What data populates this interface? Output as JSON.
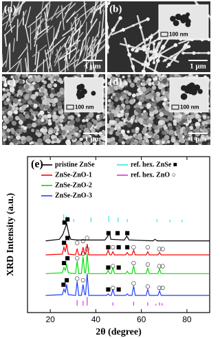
{
  "panels": [
    {
      "label": "(a)",
      "scale_bar": "1 μm"
    },
    {
      "label": "(b)",
      "scale_bar": "1 μm",
      "inset_scale_bar": "100 nm"
    },
    {
      "label": "(c)",
      "scale_bar": "1 μm",
      "inset_scale_bar": "100 nm"
    },
    {
      "label": "(d)",
      "scale_bar": "1 μm",
      "inset_scale_bar": "100 nm"
    }
  ],
  "chart_data": {
    "type": "line",
    "panel_label": "(e)",
    "xlabel": "2θ (degree)",
    "ylabel": "XRD Intensity (a.u.)",
    "xlim": [
      10,
      90
    ],
    "ylim": [
      0,
      100
    ],
    "xticks": [
      20,
      40,
      60,
      80
    ],
    "legend": "upper left",
    "series": [
      {
        "name": "pristine ZnSe",
        "color": "#000000",
        "style": "line",
        "x": [
          18,
          24,
          25.5,
          26.2,
          27.2,
          28.2,
          29,
          32,
          44,
          45.3,
          45.9,
          46.6,
          52.5,
          53.6,
          54.6,
          65,
          66,
          67,
          90
        ],
        "values": [
          46,
          47,
          50,
          53,
          57,
          50,
          47,
          46.5,
          46.5,
          49,
          52,
          47,
          46.5,
          49,
          46.6,
          46,
          47,
          46,
          46
        ]
      },
      {
        "name": "ZnSe-ZnO-1",
        "color": "#ff0000",
        "style": "line",
        "x": [
          18,
          25.3,
          26,
          26.6,
          27.2,
          27.9,
          31.1,
          31.8,
          32.5,
          33.7,
          34.4,
          35.1,
          35.5,
          36.2,
          36.9,
          44.7,
          45.4,
          46.1,
          46.8,
          47.5,
          48.2,
          53.1,
          53.8,
          54.5,
          55.9,
          56.6,
          57.3,
          62.1,
          62.8,
          63.5,
          67.3,
          68,
          68.7,
          90
        ],
        "values": [
          37,
          37.5,
          42,
          39,
          44,
          37.5,
          37,
          41,
          37,
          37,
          42,
          37.5,
          37.5,
          44,
          37,
          37,
          40,
          37,
          37,
          39,
          37,
          37,
          38.5,
          37,
          37,
          40,
          37,
          37,
          39,
          37,
          37,
          38.5,
          37,
          37
        ]
      },
      {
        "name": "ZnSe-ZnO-2",
        "color": "#00e000",
        "style": "line",
        "x": [
          18,
          25.3,
          26,
          26.6,
          27.2,
          27.9,
          31.1,
          31.8,
          32.5,
          33.7,
          34.4,
          35.1,
          35.5,
          36.2,
          36.9,
          44.7,
          45.4,
          46.1,
          46.8,
          47.5,
          48.2,
          53.1,
          53.8,
          54.5,
          55.9,
          56.6,
          57.3,
          62.1,
          62.8,
          63.5,
          67.3,
          68,
          68.7,
          90
        ],
        "values": [
          25,
          25.5,
          29,
          27,
          31,
          25.5,
          25,
          33,
          25,
          25,
          36,
          25.5,
          25.5,
          38,
          25,
          25,
          27,
          25,
          25,
          29,
          25,
          25,
          26.5,
          25,
          25,
          30,
          25,
          25,
          28.5,
          25,
          25,
          28,
          25,
          25
        ]
      },
      {
        "name": "ZnSe-ZnO-3",
        "color": "#1f3fff",
        "style": "line",
        "x": [
          18,
          25.3,
          26,
          26.6,
          27.2,
          27.9,
          31.1,
          31.8,
          32.5,
          33.7,
          34.4,
          35.1,
          35.5,
          36.2,
          36.9,
          44.7,
          45.4,
          46.1,
          46.8,
          47.5,
          48.2,
          53.1,
          53.8,
          54.5,
          55.9,
          56.6,
          57.3,
          62.1,
          62.8,
          63.5,
          67.3,
          68,
          68.7,
          90
        ],
        "values": [
          11,
          11.5,
          15,
          13,
          18,
          11.5,
          11,
          20,
          11,
          11,
          18,
          11.5,
          11.5,
          25,
          11,
          11,
          12,
          11,
          11,
          15,
          11,
          11,
          12,
          11,
          11,
          17,
          11,
          11,
          15,
          11,
          11,
          14,
          11,
          11
        ]
      },
      {
        "name": "ref. hex. ZnSe ■",
        "color": "#33e6d9",
        "style": "sticks",
        "baseline": 58,
        "x": [
          25.9,
          27.2,
          30.3,
          37.9,
          45.7,
          49.8,
          53.8,
          66.8,
          72.6,
          77.9
        ],
        "values": [
          63,
          62,
          60,
          61,
          62,
          61,
          60,
          60,
          59.5,
          59.5
        ]
      },
      {
        "name": "ref. hex. ZnO ○",
        "color": "#d633d6",
        "style": "sticks",
        "baseline": 4.5,
        "x": [
          31.8,
          34.4,
          36.2,
          47.5,
          56.6,
          62.8,
          66.4,
          68,
          69.1
        ],
        "values": [
          8,
          7.5,
          10,
          6.5,
          7,
          6.5,
          5.5,
          6.5,
          6
        ]
      }
    ],
    "markers": [
      {
        "symbol": "■",
        "x": [
          26.2,
          27.5,
          45.5,
          49.5,
          53.8,
          26,
          27.5,
          45.4,
          50,
          53.8,
          26,
          27.5,
          45.4,
          50,
          25.8,
          27.2,
          45.4,
          50
        ],
        "y": [
          58,
          60,
          51,
          51,
          51,
          45,
          48,
          42,
          42,
          42,
          32,
          35,
          29,
          29,
          18,
          21,
          15,
          15
        ]
      },
      {
        "symbol": "○",
        "x": [
          31.8,
          34.4,
          36.2,
          47.5,
          56.6,
          62.8,
          67.9,
          69.3,
          31.8,
          34.4,
          36.2,
          47.5,
          56.6,
          62.8,
          67.9,
          69.3,
          31.8,
          34.4,
          47.5,
          56.6,
          62.8,
          67.9,
          69.3
        ],
        "y": [
          45,
          46,
          48,
          42,
          42,
          42,
          41,
          41,
          35,
          38,
          41,
          30,
          32,
          31,
          30,
          30,
          22,
          21,
          16,
          19,
          17,
          16,
          16
        ]
      }
    ]
  }
}
